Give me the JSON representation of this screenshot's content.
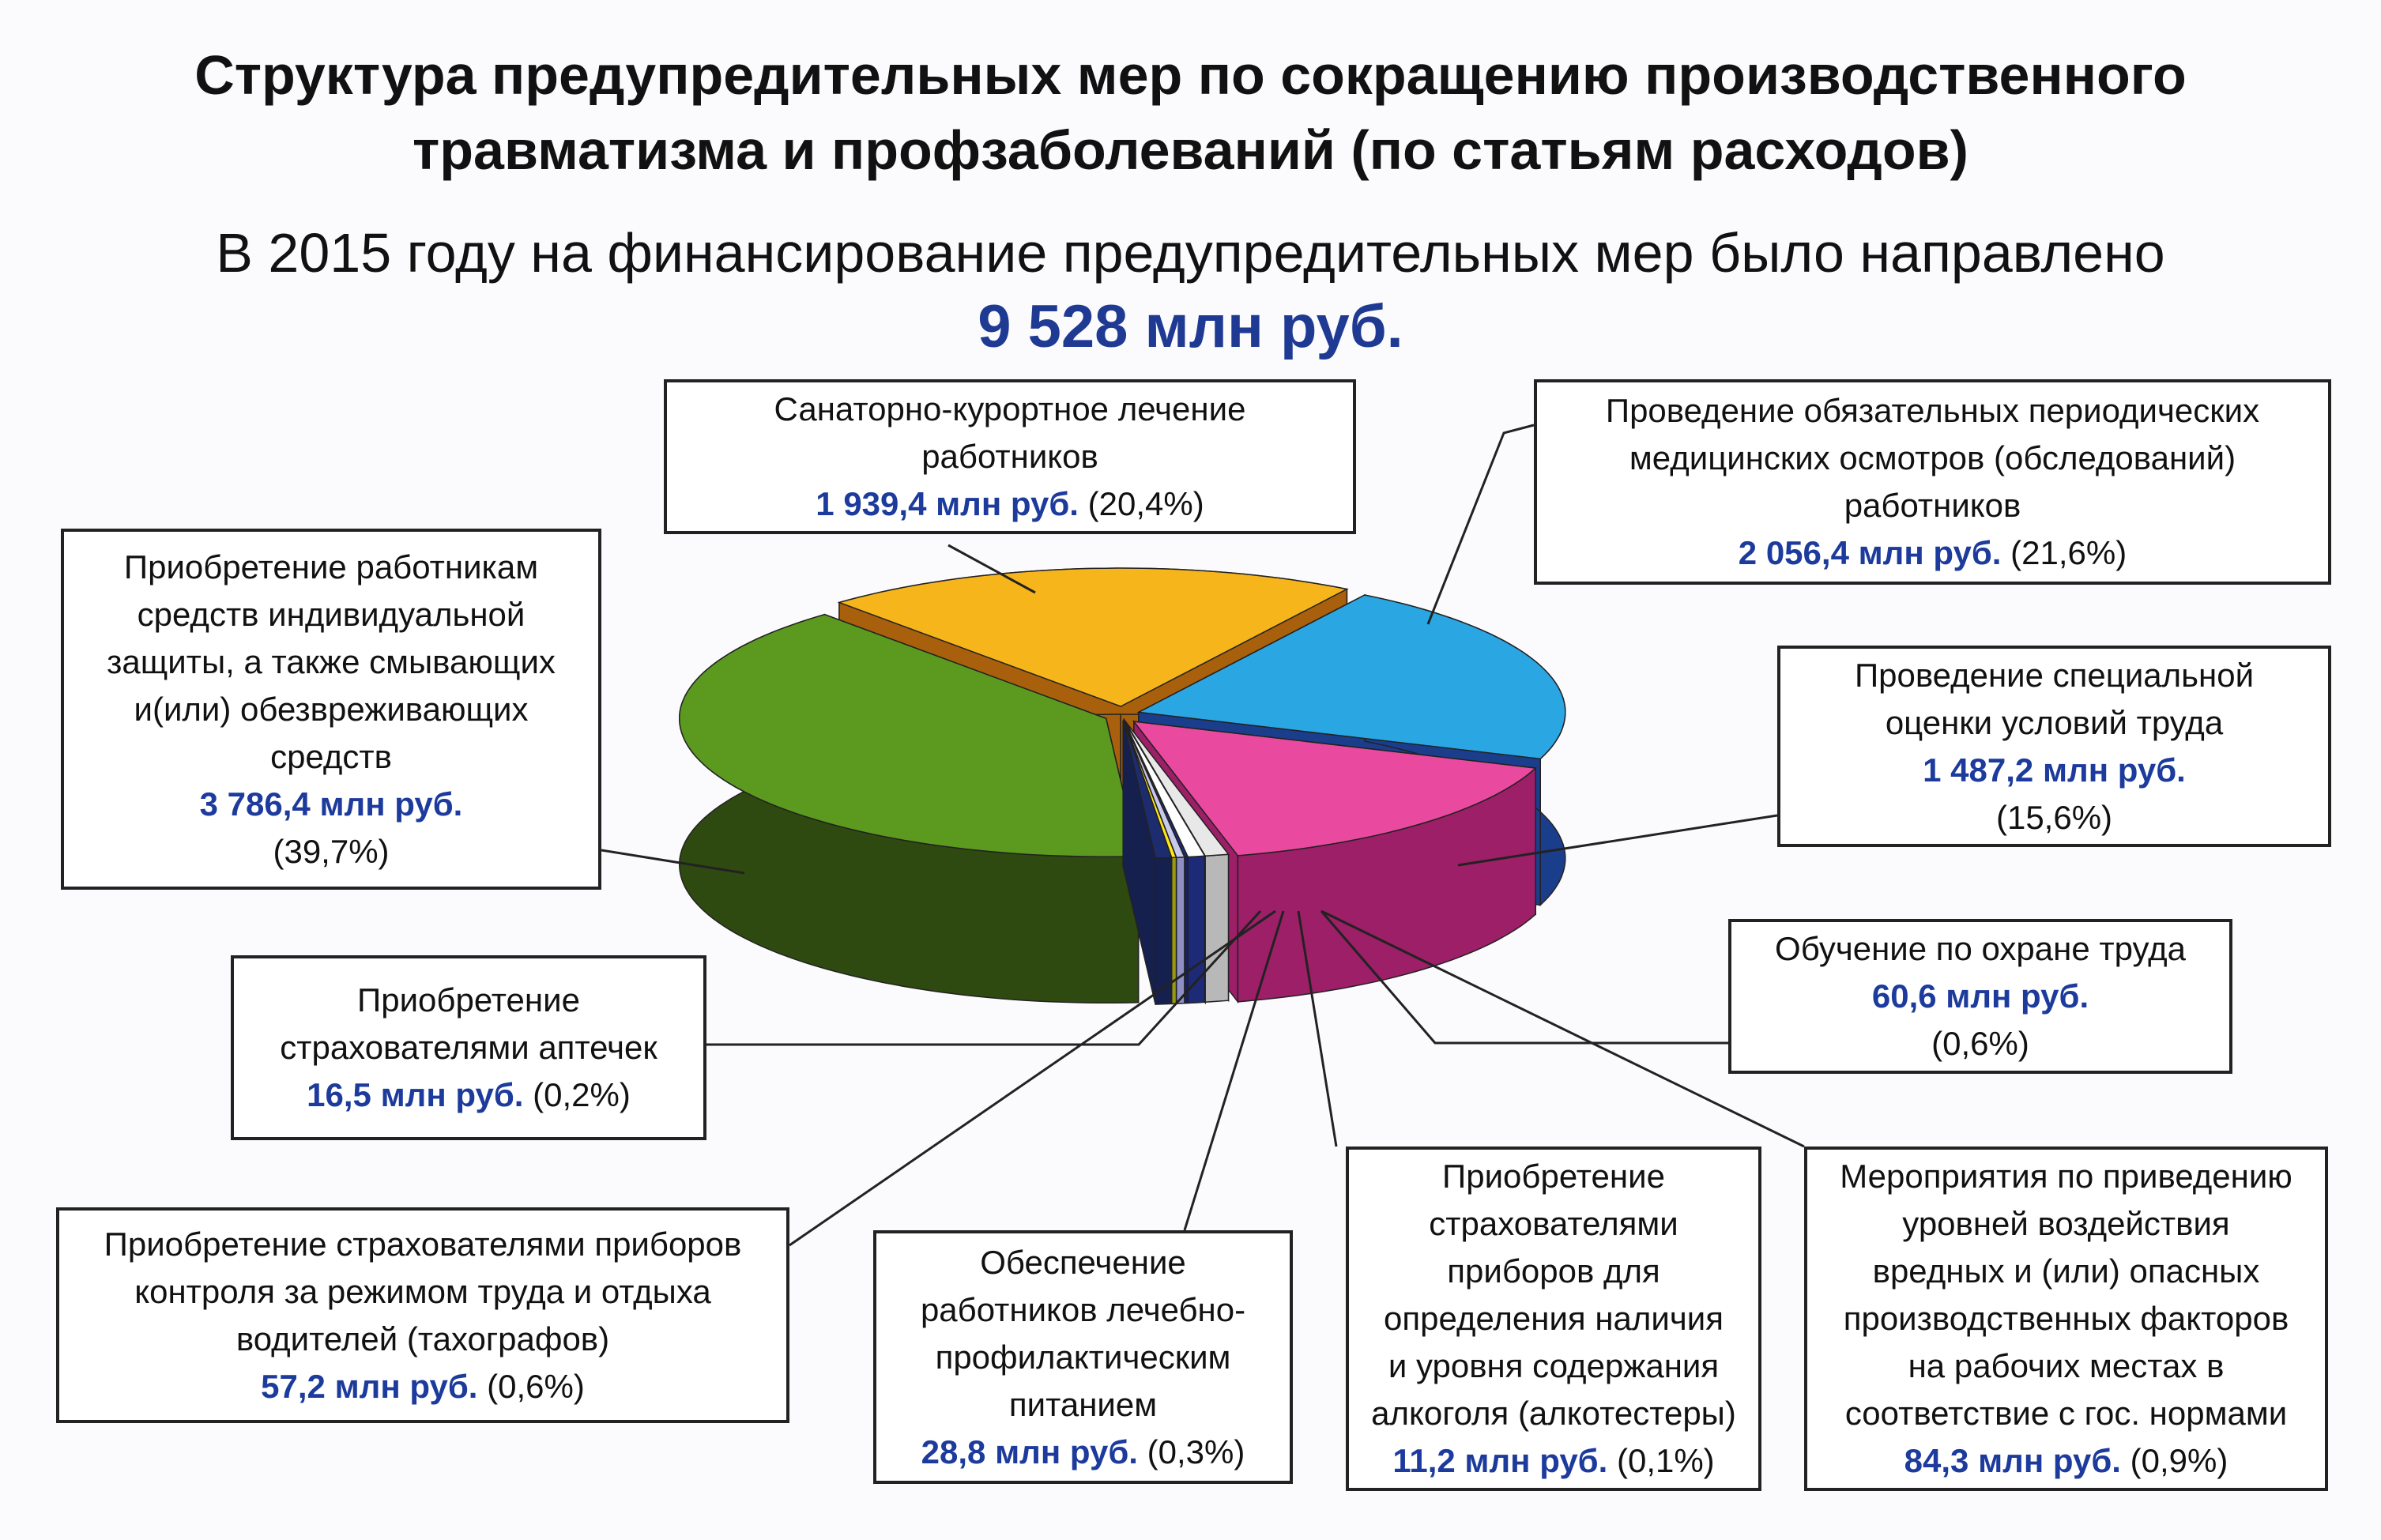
{
  "header": {
    "title_line1": "Структура предупредительных мер по сокращению производственного",
    "title_line2": "травматизма и профзаболеваний  (по статьям расходов)",
    "subtitle": "В 2015 году на финансирование предупредительных мер было направлено",
    "total": "9 528 млн руб."
  },
  "chart_data": {
    "type": "pie",
    "style": "3d-exploded",
    "unit": "млн руб.",
    "total": 9528,
    "slices": [
      {
        "key": "medical",
        "lines": [
          "Проведение обязательных периодических",
          "медицинских осмотров (обследований)",
          "работников"
        ],
        "value_label": "2 056,4 млн руб.",
        "pct_label": "(21,6%)",
        "value": 2056.4,
        "percent": 21.6,
        "color": "#2aa6e2",
        "side": "#1b3e8c"
      },
      {
        "key": "assessment",
        "lines": [
          "Проведение специальной",
          "оценки  условий труда"
        ],
        "value_label": "1 487,2 млн руб.",
        "pct_label": "(15,6%)",
        "value": 1487.2,
        "percent": 15.6,
        "color": "#e94a9f",
        "side": "#9c1f68"
      },
      {
        "key": "harmful",
        "lines": [
          "Мероприятия по приведению",
          "уровней воздействия",
          "вредных и (или) опасных",
          "производственных факторов",
          "на рабочих местах в",
          "соответствие с гос. нормами"
        ],
        "value_label": "84,3 млн руб.",
        "pct_label": "(0,9%)",
        "value": 84.3,
        "percent": 0.9,
        "color": "#e8e8e8",
        "side": "#b8b8b8"
      },
      {
        "key": "training",
        "lines": [
          "Обучение по охране труда"
        ],
        "value_label": "60,6 млн руб.",
        "pct_label": "(0,6%)",
        "value": 60.6,
        "percent": 0.6,
        "color": "#ffffff",
        "side": "#1c2a78"
      },
      {
        "key": "alcohol",
        "lines": [
          "Приобретение",
          "страхователями",
          "приборов для",
          "определения наличия",
          "и уровня содержания",
          "алкоголя (алкотестеры)"
        ],
        "value_label": "11,2 млн руб.",
        "pct_label": "(0,1%)",
        "value": 11.2,
        "percent": 0.1,
        "color": "#1c2a88",
        "side": "#16206a"
      },
      {
        "key": "nutrition",
        "lines": [
          "Обеспечение",
          "работников лечебно-",
          "профилактическим",
          "питанием"
        ],
        "value_label": "28,8 млн руб.",
        "pct_label": "(0,3%)",
        "value": 28.8,
        "percent": 0.3,
        "color": "#c9c9ec",
        "side": "#8f8fc4"
      },
      {
        "key": "kits",
        "lines": [
          "Приобретение",
          "страхователями аптечек"
        ],
        "value_label": "16,5 млн руб.",
        "pct_label": "(0,2%)",
        "value": 16.5,
        "percent": 0.2,
        "color": "#ffe81a",
        "side": "#9a9a12"
      },
      {
        "key": "tachographs",
        "lines": [
          "Приобретение страхователями приборов",
          "контроля за режимом труда и отдыха",
          "водителей (тахографов)"
        ],
        "value_label": "57,2 млн руб.",
        "pct_label": "(0,6%)",
        "value": 57.2,
        "percent": 0.6,
        "color": "#1d2c6e",
        "side": "#15204f"
      },
      {
        "key": "ppe",
        "lines": [
          "Приобретение работникам",
          "средств индивидуальной",
          "защиты, а также смывающих",
          "и(или) обезвреживающих",
          "средств"
        ],
        "value_label": "3 786,4 млн руб.",
        "pct_label": "(39,7%)",
        "value": 3786.4,
        "percent": 39.7,
        "color": "#5b9a1f",
        "side": "#2f4a10"
      },
      {
        "key": "sanatorium",
        "lines": [
          "Санаторно-курортное лечение",
          "работников"
        ],
        "value_label": "1 939,4 млн руб.",
        "pct_label": "(20,4%)",
        "value": 1939.4,
        "percent": 20.4,
        "color": "#f6b51b",
        "side": "#a8600c"
      }
    ]
  }
}
